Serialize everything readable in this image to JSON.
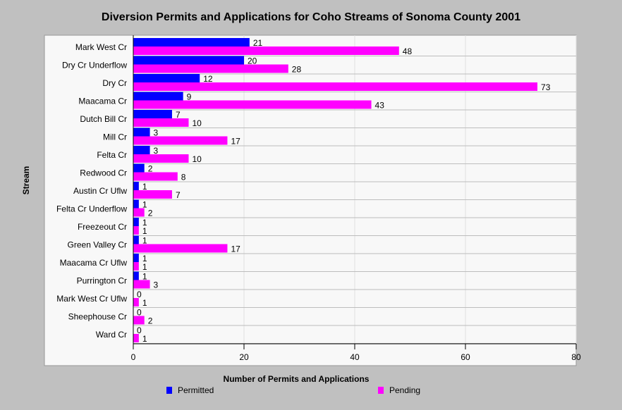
{
  "chart_data": {
    "type": "bar",
    "orientation": "horizontal",
    "title": "Diversion Permits and Applications for Coho Streams of Sonoma County 2001",
    "xlabel": "Number of Permits and Applications",
    "ylabel": "Stream",
    "xlim": [
      0,
      80
    ],
    "xticks": [
      0,
      20,
      40,
      60,
      80
    ],
    "grid": true,
    "legend_position": "bottom",
    "categories": [
      "Mark West Cr",
      "Dry Cr Underflow",
      "Dry Cr",
      "Maacama Cr",
      "Dutch Bill Cr",
      "Mill Cr",
      "Felta Cr",
      "Redwood Cr",
      "Austin Cr Uflw",
      "Felta Cr Underflow",
      "Freezeout Cr",
      "Green Valley Cr",
      "Maacama Cr Uflw",
      "Purrington Cr",
      "Mark West Cr Uflw",
      "Sheephouse Cr",
      "Ward Cr"
    ],
    "series": [
      {
        "name": "Permitted",
        "color": "#0000ff",
        "values": [
          21,
          20,
          12,
          9,
          7,
          3,
          3,
          2,
          1,
          1,
          1,
          1,
          1,
          1,
          0,
          0,
          0
        ]
      },
      {
        "name": "Pending",
        "color": "#ff00ff",
        "values": [
          48,
          28,
          73,
          43,
          10,
          17,
          10,
          8,
          7,
          2,
          1,
          17,
          1,
          3,
          1,
          2,
          1
        ]
      }
    ]
  }
}
